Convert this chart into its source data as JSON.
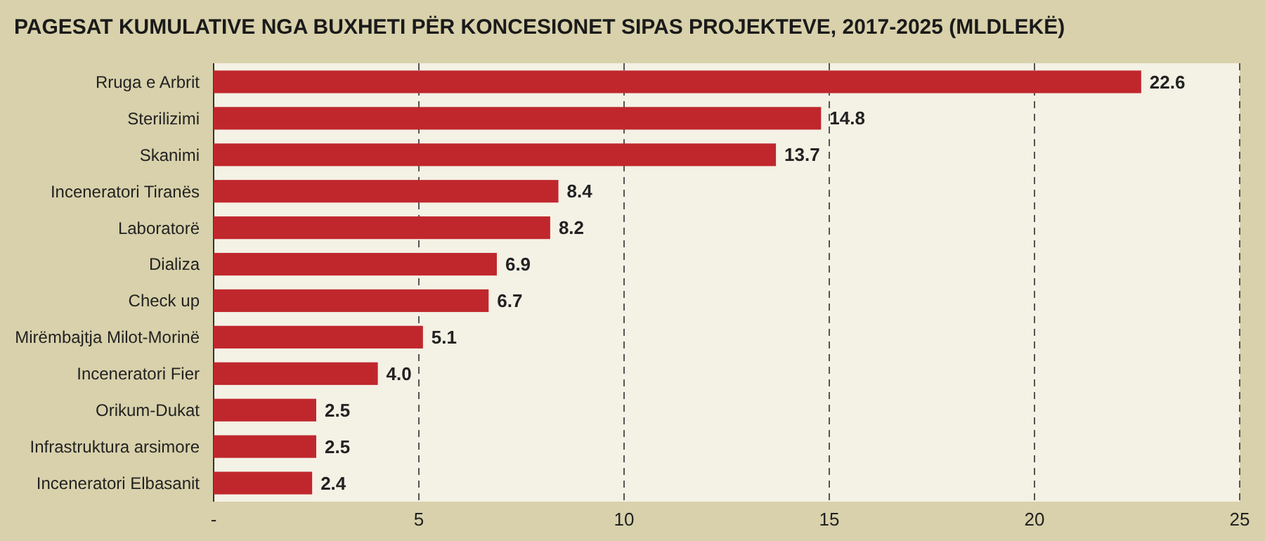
{
  "chart_data": {
    "type": "bar",
    "orientation": "horizontal",
    "title": "PAGESAT KUMULATIVE NGA BUXHETI PËR KONCESIONET SIPAS PROJEKTEVE, 2017-2025 (MLDLEKË)",
    "categories": [
      "Rruga e Arbrit",
      "Sterilizimi",
      "Skanimi",
      "Inceneratori Tiranës",
      "Laboratorë",
      "Dializa",
      "Check up",
      "Mirëmbajtja Milot-Morinë",
      "Inceneratori Fier",
      "Orikum-Dukat",
      "Infrastruktura arsimore",
      "Inceneratori Elbasanit"
    ],
    "values": [
      22.6,
      14.8,
      13.7,
      8.4,
      8.2,
      6.9,
      6.7,
      5.1,
      4.0,
      2.5,
      2.5,
      2.4
    ],
    "value_labels": [
      "22.6",
      "14.8",
      "13.7",
      "8.4",
      "8.2",
      "6.9",
      "6.7",
      "5.1",
      "4.0",
      "2.5",
      "2.5",
      "2.4"
    ],
    "color": "#c0272d",
    "xlim": [
      0,
      25
    ],
    "xticks": [
      {
        "value": 0,
        "label": "-"
      },
      5,
      10,
      15,
      20,
      25
    ],
    "grid": "x"
  }
}
